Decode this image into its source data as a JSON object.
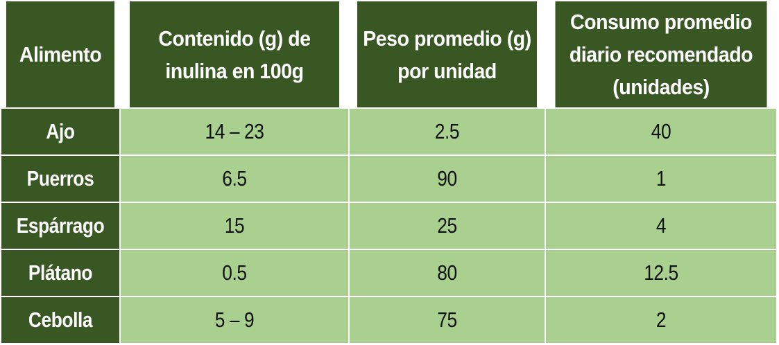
{
  "colors": {
    "header_bg": "#385723",
    "cell_bg": "#a9d08e",
    "header_text": "#ffffff",
    "cell_text": "#111111",
    "grid": "#ffffff"
  },
  "table": {
    "headers": [
      "Alimento",
      "Contenido (g) de inulina en 100g",
      "Peso promedio (g) por unidad",
      "Consumo promedio diario recomendado (unidades)"
    ],
    "rows": [
      [
        "Ajo",
        "14 – 23",
        "2.5",
        "40"
      ],
      [
        "Puerros",
        "6.5",
        "90",
        "1"
      ],
      [
        "Espárrago",
        "15",
        "25",
        "4"
      ],
      [
        "Plátano",
        "0.5",
        "80",
        "12.5"
      ],
      [
        "Cebolla",
        "5 – 9",
        "75",
        "2"
      ]
    ]
  }
}
